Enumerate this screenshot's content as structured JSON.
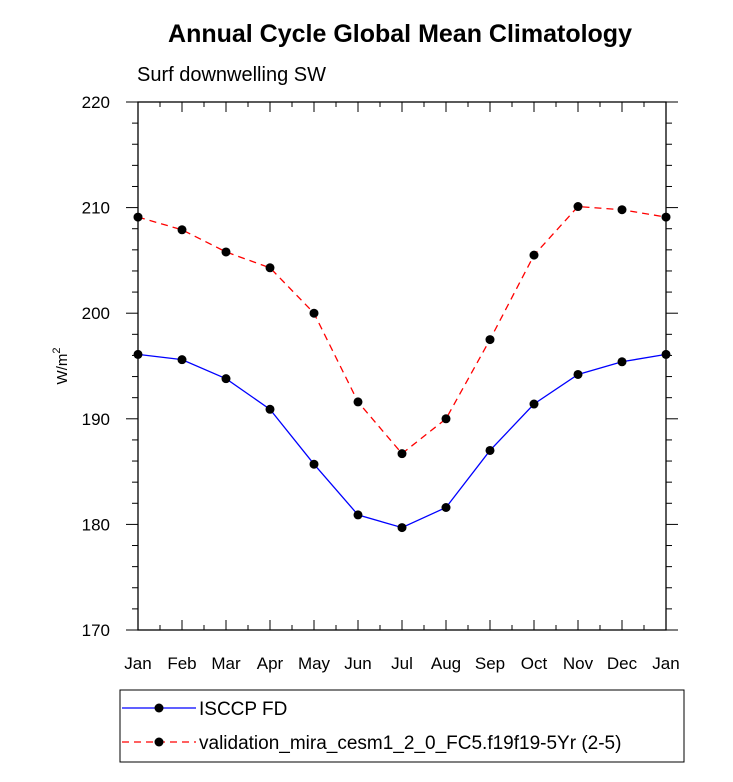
{
  "chart_data": {
    "type": "line",
    "title": "Annual Cycle Global Mean Climatology",
    "subtitle": "Surf downwelling SW",
    "ylabel_base": "W/m",
    "ylabel_sup": "2",
    "ylim": [
      170,
      220
    ],
    "yticks": [
      170,
      180,
      190,
      200,
      210,
      220
    ],
    "categories": [
      "Jan",
      "Feb",
      "Mar",
      "Apr",
      "May",
      "Jun",
      "Jul",
      "Aug",
      "Sep",
      "Oct",
      "Nov",
      "Dec",
      "Jan"
    ],
    "grid": false,
    "legend_position": "bottom",
    "series": [
      {
        "name": "ISCCP FD",
        "color": "#0000ff",
        "dash": "solid",
        "marker": "filled-circle",
        "values": [
          196.1,
          195.6,
          193.8,
          190.9,
          185.7,
          180.9,
          179.7,
          181.6,
          187.0,
          191.4,
          194.2,
          195.4,
          196.1
        ]
      },
      {
        "name": "validation_mira_cesm1_2_0_FC5.f19f19-5Yr (2-5)",
        "color": "#ff0000",
        "dash": "dashed",
        "marker": "filled-circle",
        "values": [
          209.1,
          207.9,
          205.8,
          204.3,
          200.0,
          191.6,
          186.7,
          190.0,
          197.5,
          205.5,
          210.1,
          209.8,
          209.1
        ]
      }
    ]
  }
}
